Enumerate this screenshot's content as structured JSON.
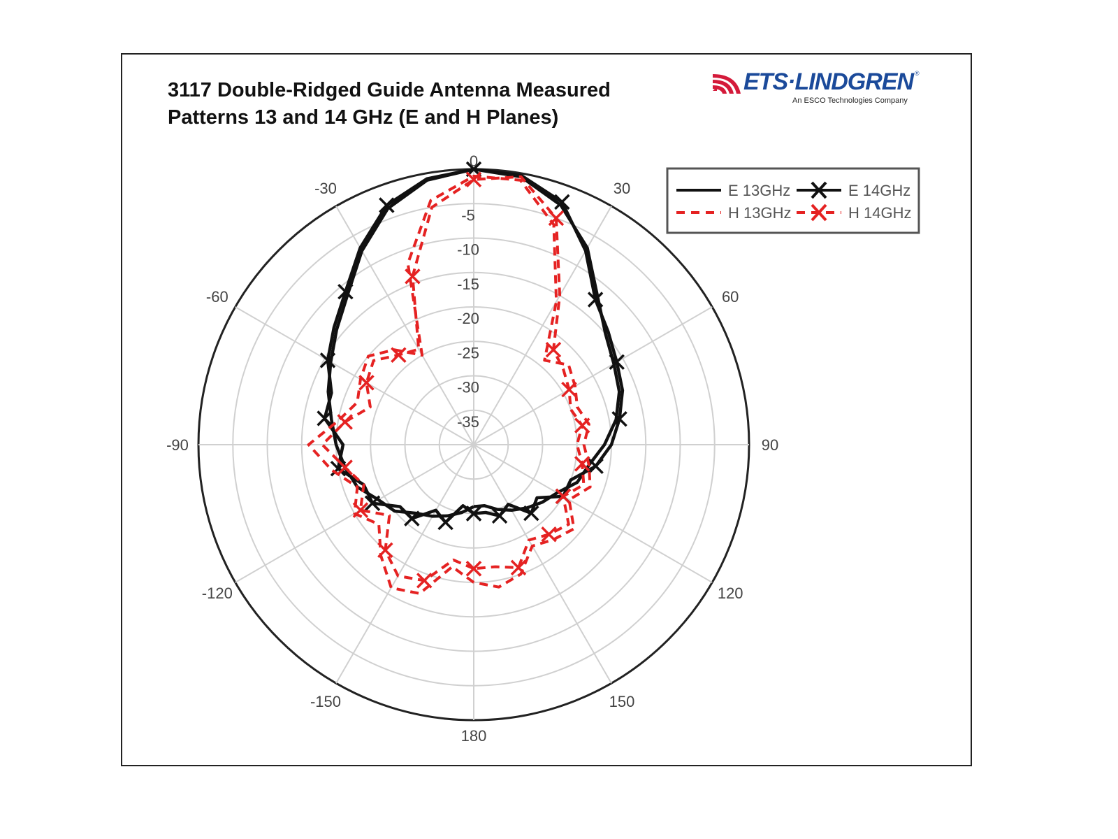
{
  "chart_data": {
    "type": "polar-line",
    "title_line1": "3117 Double-Ridged Guide Antenna Measured",
    "title_line2": "Patterns 13 and 14 GHz (E and H Planes)",
    "angle_unit": "degrees",
    "angle_ticks": [
      "0",
      "30",
      "60",
      "90",
      "120",
      "150",
      "180",
      "-150",
      "-120",
      "-90",
      "-60",
      "-30"
    ],
    "angle_tick_values": [
      0,
      30,
      60,
      90,
      120,
      150,
      180,
      -150,
      -120,
      -90,
      -60,
      -30
    ],
    "radial_ticks": [
      "-5",
      "-10",
      "-15",
      "-20",
      "-25",
      "-30",
      "-35"
    ],
    "radial_tick_values": [
      -5,
      -10,
      -15,
      -20,
      -25,
      -30,
      -35
    ],
    "rlim": [
      -40,
      0
    ],
    "grid": true,
    "legend_position": "top-right",
    "angles": [
      -180,
      -170,
      -160,
      -150,
      -140,
      -130,
      -120,
      -110,
      -100,
      -90,
      -80,
      -70,
      -60,
      -50,
      -40,
      -30,
      -20,
      -10,
      0,
      10,
      20,
      30,
      40,
      50,
      60,
      70,
      80,
      90,
      100,
      110,
      120,
      130,
      140,
      150,
      160,
      170,
      180
    ],
    "series": [
      {
        "name": "E 13GHz",
        "color": "#111111",
        "style": "solid",
        "marker": "none",
        "values": [
          -31,
          -30,
          -29,
          -28,
          -27,
          -25,
          -24,
          -22,
          -21,
          -20,
          -19,
          -17.5,
          -16,
          -14,
          -11.5,
          -7.5,
          -3.5,
          -1,
          0,
          -0.5,
          -3,
          -7,
          -12,
          -15,
          -16.5,
          -17.5,
          -19,
          -21,
          -23,
          -24,
          -26,
          -27,
          -28,
          -29,
          -30,
          -31,
          -31
        ]
      },
      {
        "name": "E 14GHz",
        "color": "#111111",
        "style": "solid",
        "marker": "x",
        "values": [
          -30,
          -31,
          -28,
          -29,
          -26,
          -26,
          -23,
          -23,
          -20,
          -21,
          -18,
          -18,
          -15.5,
          -13.5,
          -11,
          -7,
          -3,
          -0.8,
          0,
          -0.3,
          -2.5,
          -7.5,
          -12.5,
          -14.5,
          -16,
          -17,
          -18.5,
          -20,
          -22,
          -25,
          -25,
          -28,
          -27,
          -30,
          -29,
          -30,
          -30
        ]
      },
      {
        "name": "H 13GHz",
        "color": "#e52222",
        "style": "dashed",
        "marker": "none",
        "values": [
          -20,
          -22,
          -17,
          -16,
          -19,
          -22,
          -20,
          -22,
          -19,
          -16,
          -20,
          -22,
          -21,
          -20,
          -22,
          -25,
          -12,
          -4,
          -1,
          -1,
          -6,
          -16,
          -24,
          -22,
          -23,
          -24,
          -23,
          -24,
          -23,
          -22,
          -24,
          -21,
          -22,
          -23,
          -20,
          -19,
          -20
        ]
      },
      {
        "name": "H 14GHz",
        "color": "#e52222",
        "style": "dashed",
        "marker": "x",
        "values": [
          -22,
          -23,
          -19,
          -18,
          -20,
          -24,
          -21,
          -23,
          -21,
          -18,
          -21,
          -24,
          -22,
          -21,
          -23,
          -24,
          -14,
          -5,
          -1.5,
          -0.5,
          -5,
          -15,
          -22,
          -23,
          -24,
          -25,
          -24,
          -25,
          -24,
          -23,
          -25,
          -22,
          -23,
          -24,
          -21,
          -22,
          -22
        ]
      }
    ]
  },
  "logo": {
    "brand": "ETS·LINDGREN",
    "tagline": "An ESCO Technologies Company",
    "reg": "®"
  }
}
